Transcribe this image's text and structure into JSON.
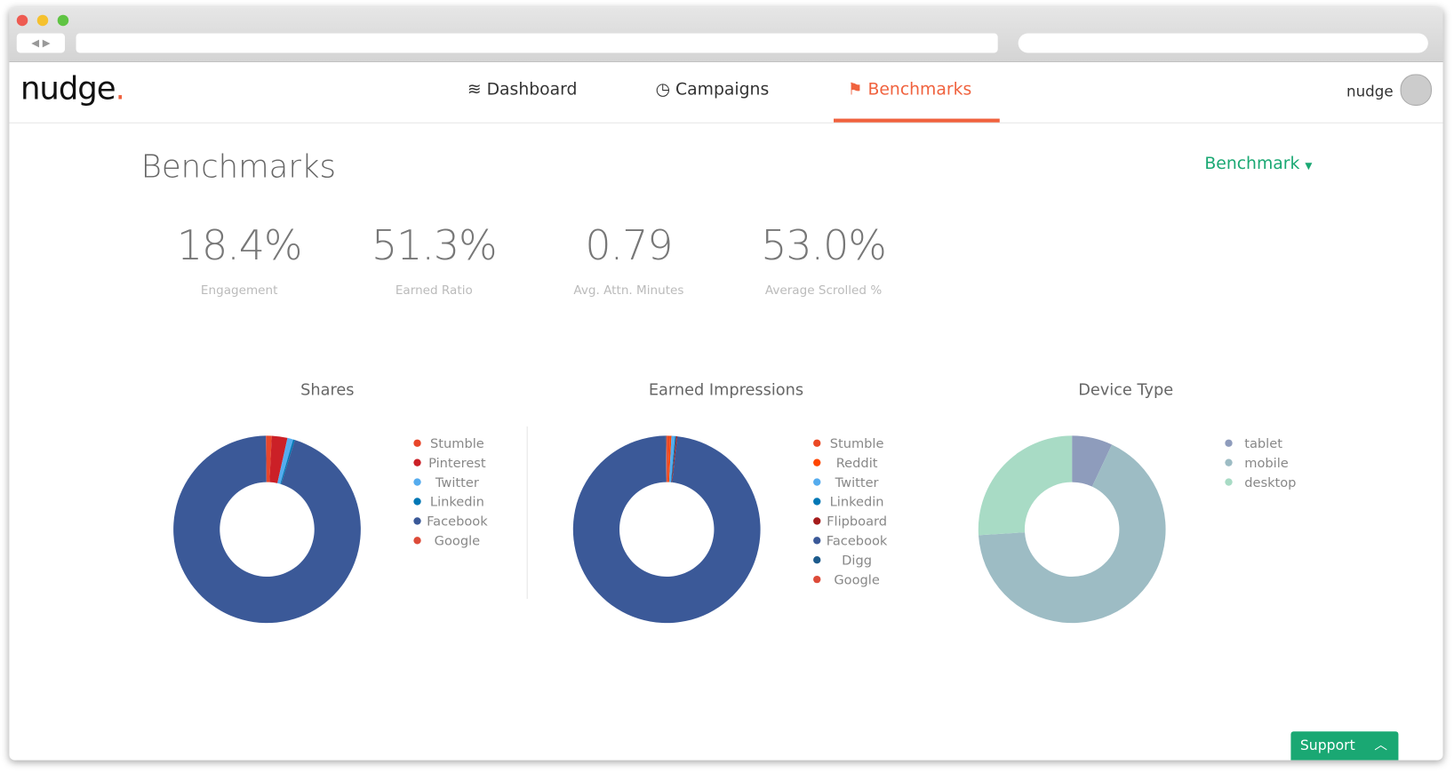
{
  "header": {
    "logo": "nudge",
    "nav": [
      "Dashboard",
      "Campaigns",
      "Benchmarks"
    ],
    "user": "nudge"
  },
  "page": {
    "title": "Benchmarks",
    "dropdown": "Benchmark"
  },
  "stats": [
    {
      "value": "18.4%",
      "label": "Engagement"
    },
    {
      "value": "51.3%",
      "label": "Earned Ratio"
    },
    {
      "value": "0.79",
      "label": "Avg. Attn. Minutes"
    },
    {
      "value": "53.0%",
      "label": "Average Scrolled %"
    }
  ],
  "support": "Support",
  "chart_data": [
    {
      "type": "pie",
      "title": "Shares",
      "categories": [
        "Stumble",
        "Pinterest",
        "Twitter",
        "Linkedin",
        "Facebook",
        "Google"
      ],
      "values": [
        0.8,
        2.7,
        1.0,
        0.3,
        95,
        0.2
      ],
      "colors": [
        "#e8462a",
        "#cb2027",
        "#55acee",
        "#0077b5",
        "#3b5998",
        "#dd4b39"
      ]
    },
    {
      "type": "pie",
      "title": "Earned Impressions",
      "categories": [
        "Stumble",
        "Reddit",
        "Twitter",
        "Linkedin",
        "Flipboard",
        "Facebook",
        "Digg",
        "Google"
      ],
      "values": [
        0.5,
        0.3,
        0.6,
        0.2,
        0.2,
        98,
        0.1,
        0.1
      ],
      "colors": [
        "#eb4924",
        "#ff4500",
        "#55acee",
        "#0077b5",
        "#a51c1c",
        "#3b5998",
        "#1d5b8c",
        "#dd4b39"
      ]
    },
    {
      "type": "pie",
      "title": "Device Type",
      "categories": [
        "tablet",
        "mobile",
        "desktop"
      ],
      "values": [
        7,
        67,
        26
      ],
      "colors": [
        "#8e9cbc",
        "#9dbcc4",
        "#a8dbc5"
      ]
    }
  ]
}
